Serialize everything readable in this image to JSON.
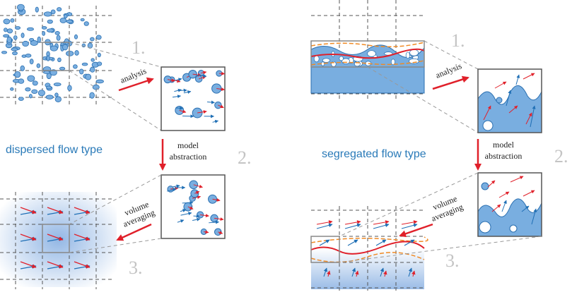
{
  "left": {
    "step1": "1.",
    "analysis": "analysis",
    "title": "dispersed flow type",
    "model": "model",
    "abstraction": "abstraction",
    "step2": "2.",
    "volume": "volume",
    "averaging": "averaging",
    "step3": "3."
  },
  "right": {
    "step1": "1.",
    "analysis": "analysis",
    "title": "segregated flow type",
    "model": "model",
    "abstraction": "abstraction",
    "step2": "2.",
    "volume": "volume",
    "averaging": "averaging",
    "step3": "3."
  }
}
